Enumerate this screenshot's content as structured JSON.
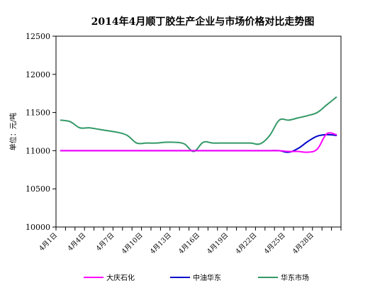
{
  "chart_data": {
    "type": "line",
    "title": "2014年4月顺丁胶生产企业与市场价格对比走势图",
    "xlabel": "",
    "ylabel": "单位：元/吨",
    "ylim": [
      10000,
      12500
    ],
    "yticks": [
      10000,
      10500,
      11000,
      11500,
      12000,
      12500
    ],
    "x": [
      "4月1日",
      "4月2日",
      "4月3日",
      "4月4日",
      "4月5日",
      "4月6日",
      "4月7日",
      "4月8日",
      "4月9日",
      "4月10日",
      "4月11日",
      "4月12日",
      "4月13日",
      "4月14日",
      "4月15日",
      "4月16日",
      "4月17日",
      "4月18日",
      "4月19日",
      "4月20日",
      "4月21日",
      "4月22日",
      "4月23日",
      "4月24日",
      "4月25日",
      "4月26日",
      "4月27日",
      "4月28日",
      "4月29日",
      "4月30日"
    ],
    "xtick_labels": [
      "4月1日",
      "4月4日",
      "4月7日",
      "4月10日",
      "4月13日",
      "4月16日",
      "4月19日",
      "4月22日",
      "4月25日",
      "4月28日"
    ],
    "grid": false,
    "legend_position": "bottom",
    "series": [
      {
        "name": "大庆石化",
        "color": "#ff00ff",
        "values": [
          11000,
          11000,
          11000,
          11000,
          11000,
          11000,
          11000,
          11000,
          11000,
          11000,
          11000,
          11000,
          11000,
          11000,
          11000,
          11000,
          11000,
          11000,
          11000,
          11000,
          11000,
          11000,
          11000,
          11000,
          10990,
          10990,
          10980,
          11020,
          11220,
          11210
        ]
      },
      {
        "name": "中油华东",
        "color": "#0000cc",
        "values": [
          11000,
          11000,
          11000,
          11000,
          11000,
          11000,
          11000,
          11000,
          11000,
          11000,
          11000,
          11000,
          11000,
          11000,
          11000,
          11000,
          11000,
          11000,
          11000,
          11000,
          11000,
          11000,
          11000,
          11000,
          10980,
          11030,
          11120,
          11190,
          11210,
          11200
        ]
      },
      {
        "name": "华东市场",
        "color": "#339966",
        "values": [
          11400,
          11380,
          11300,
          11300,
          11280,
          11260,
          11240,
          11200,
          11100,
          11100,
          11100,
          11110,
          11110,
          11090,
          10990,
          11110,
          11100,
          11100,
          11100,
          11100,
          11100,
          11090,
          11200,
          11400,
          11400,
          11430,
          11460,
          11500,
          11600,
          11700
        ]
      }
    ]
  }
}
